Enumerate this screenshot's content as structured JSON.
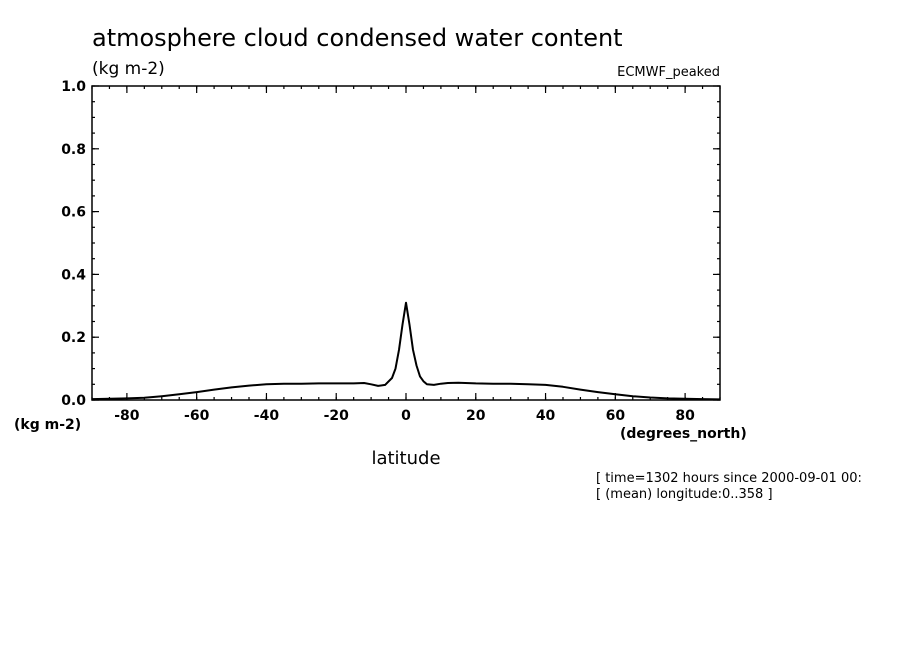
{
  "chart_data": {
    "type": "line",
    "title": "atmosphere cloud condensed water content",
    "units": "(kg m-2)",
    "dataset_label": "ECMWF_peaked",
    "ylabel_units": "(kg m-2)",
    "xlabel": "latitude",
    "xlabel_units": "(degrees_north)",
    "xlim": [
      -90,
      90
    ],
    "ylim": [
      0,
      1.0
    ],
    "xticks": [
      -80,
      -60,
      -40,
      -20,
      0,
      20,
      40,
      60,
      80
    ],
    "xtick_labels": [
      "-80",
      "-60",
      "-40",
      "-20",
      "0",
      "20",
      "40",
      "60",
      "80"
    ],
    "yticks": [
      0,
      0.2,
      0.4,
      0.6,
      0.8,
      1.0
    ],
    "ytick_labels": [
      "0.0",
      "0.2",
      "0.4",
      "0.6",
      "0.8",
      "1.0"
    ],
    "grid": false,
    "annotations": [
      "[ time=1302 hours since 2000-09-01 00:",
      "[ (mean) longitude:0..358 ]"
    ],
    "series": [
      {
        "x": [
          -90,
          -85,
          -80,
          -75,
          -70,
          -65,
          -60,
          -55,
          -50,
          -45,
          -40,
          -35,
          -30,
          -25,
          -20,
          -15,
          -12,
          -10,
          -8,
          -6,
          -4,
          -3,
          -2,
          -1,
          0,
          1,
          2,
          3,
          4,
          5,
          6,
          8,
          10,
          12,
          15,
          20,
          25,
          30,
          35,
          40,
          45,
          50,
          55,
          60,
          65,
          70,
          75,
          80,
          85,
          90
        ],
        "y": [
          0.003,
          0.004,
          0.005,
          0.007,
          0.012,
          0.018,
          0.025,
          0.033,
          0.04,
          0.046,
          0.05,
          0.052,
          0.052,
          0.053,
          0.053,
          0.053,
          0.054,
          0.05,
          0.045,
          0.048,
          0.07,
          0.1,
          0.16,
          0.24,
          0.31,
          0.24,
          0.16,
          0.11,
          0.075,
          0.06,
          0.05,
          0.048,
          0.052,
          0.054,
          0.055,
          0.053,
          0.052,
          0.052,
          0.05,
          0.048,
          0.042,
          0.033,
          0.025,
          0.018,
          0.012,
          0.008,
          0.005,
          0.004,
          0.003,
          0.002
        ]
      }
    ]
  }
}
